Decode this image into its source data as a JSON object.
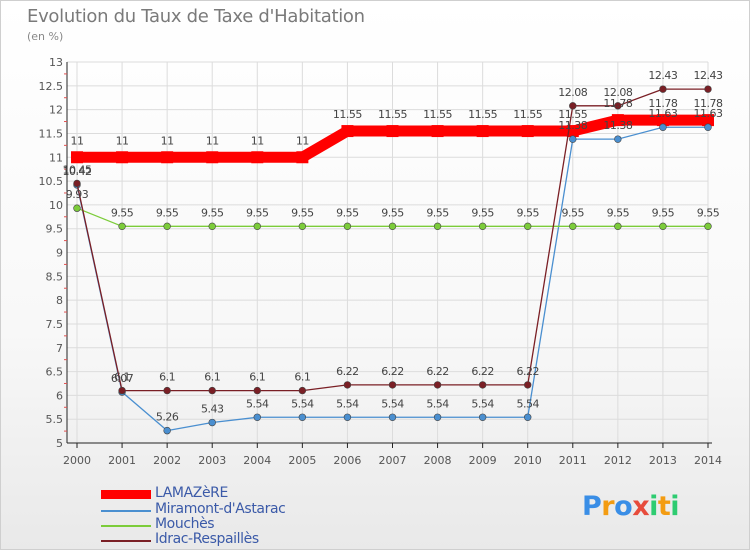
{
  "chart_data": {
    "type": "line",
    "title": "Evolution du Taux de Taxe d'Habitation",
    "ylabel": "(en %)",
    "xlabel": "",
    "ylim": [
      5,
      13
    ],
    "yticks": [
      "5",
      "5.5",
      "6",
      "6.5",
      "7",
      "7.5",
      "8",
      "8.5",
      "9",
      "9.5",
      "10",
      "10.5",
      "11",
      "11.5",
      "12",
      "12.5",
      "13"
    ],
    "categories": [
      "2000",
      "2001",
      "2002",
      "2003",
      "2004",
      "2005",
      "2006",
      "2007",
      "2008",
      "2009",
      "2010",
      "2011",
      "2012",
      "2013",
      "2014"
    ],
    "series": [
      {
        "name": "LAMAZèRE",
        "color": "#ff0000",
        "values": [
          11,
          11,
          11,
          11,
          11,
          11,
          11.55,
          11.55,
          11.55,
          11.55,
          11.55,
          11.55,
          11.78,
          11.78,
          11.78
        ],
        "labels": [
          "11",
          "11",
          "11",
          "11",
          "11",
          "11",
          "11.55",
          "11.55",
          "11.55",
          "11.55",
          "11.55",
          "11.55",
          "11.78",
          "11.78",
          "11.78"
        ]
      },
      {
        "name": "Miramont-d'Astarac",
        "color": "#4a8fd0",
        "values": [
          10.42,
          6.07,
          5.26,
          5.43,
          5.54,
          5.54,
          5.54,
          5.54,
          5.54,
          5.54,
          5.54,
          11.38,
          11.38,
          11.63,
          11.63
        ],
        "labels": [
          "10.42",
          "6.07",
          "5.26",
          "5.43",
          "5.54",
          "5.54",
          "5.54",
          "5.54",
          "5.54",
          "5.54",
          "5.54",
          "11.38",
          "11.38",
          "11.63",
          "11.63"
        ]
      },
      {
        "name": "Mouchès",
        "color": "#7ccc3a",
        "values": [
          9.93,
          9.55,
          9.55,
          9.55,
          9.55,
          9.55,
          9.55,
          9.55,
          9.55,
          9.55,
          9.55,
          9.55,
          9.55,
          9.55,
          9.55
        ],
        "labels": [
          "9.93",
          "9.55",
          "9.55",
          "9.55",
          "9.55",
          "9.55",
          "9.55",
          "9.55",
          "9.55",
          "9.55",
          "9.55",
          "9.55",
          "9.55",
          "9.55",
          "9.55"
        ]
      },
      {
        "name": "Idrac-Respaillès",
        "color": "#7a1f25",
        "values": [
          10.45,
          6.1,
          6.1,
          6.1,
          6.1,
          6.1,
          6.22,
          6.22,
          6.22,
          6.22,
          6.22,
          12.08,
          12.08,
          12.43,
          12.43
        ],
        "labels": [
          "10.45",
          "6.1",
          "6.1",
          "6.1",
          "6.1",
          "6.1",
          "6.22",
          "6.22",
          "6.22",
          "6.22",
          "6.22",
          "12.08",
          "12.08",
          "12.43",
          "12.43"
        ]
      }
    ],
    "legend": [
      "LAMAZèRE",
      "Miramont-d'Astarac",
      "Mouchès",
      "Idrac-Respaillès"
    ],
    "legend_position": "bottom-left",
    "grid": true
  },
  "branding": {
    "logo_letters": [
      "P",
      "r",
      "o",
      "x",
      "i",
      "t",
      "i"
    ],
    "logo_colors": [
      "#3a8ee6",
      "#f39c12",
      "#3a8ee6",
      "#e74c3c",
      "#2ecc71",
      "#f39c12",
      "#2ecc71"
    ]
  }
}
